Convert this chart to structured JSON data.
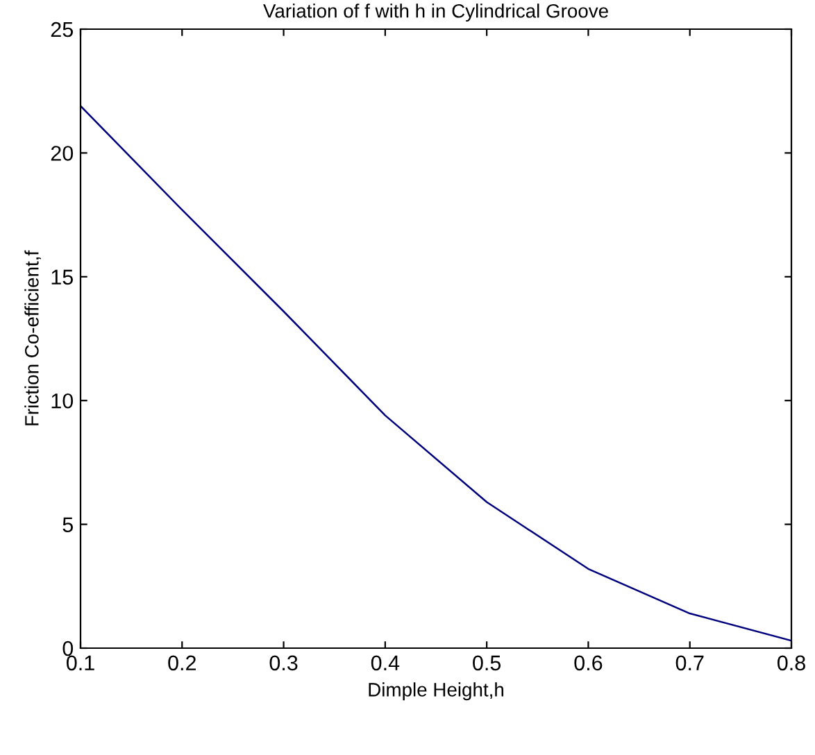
{
  "chart_data": {
    "type": "line",
    "title": "Variation of f with h in Cylindrical Groove",
    "xlabel": "Dimple Height,h",
    "ylabel": "Friction Co-efficient,f",
    "x": [
      0.1,
      0.2,
      0.3,
      0.4,
      0.5,
      0.6,
      0.7,
      0.8
    ],
    "series": [
      {
        "color": "#00007f",
        "values": [
          21.9,
          17.7,
          13.6,
          9.4,
          5.9,
          3.2,
          1.4,
          0.3
        ]
      }
    ],
    "xlim": [
      0.1,
      0.8
    ],
    "ylim": [
      0,
      25
    ],
    "xticks": [
      0.1,
      0.2,
      0.3,
      0.4,
      0.5,
      0.6,
      0.7,
      0.8
    ],
    "yticks": [
      0,
      5,
      10,
      15,
      20,
      25
    ],
    "grid": false,
    "legend": false
  }
}
